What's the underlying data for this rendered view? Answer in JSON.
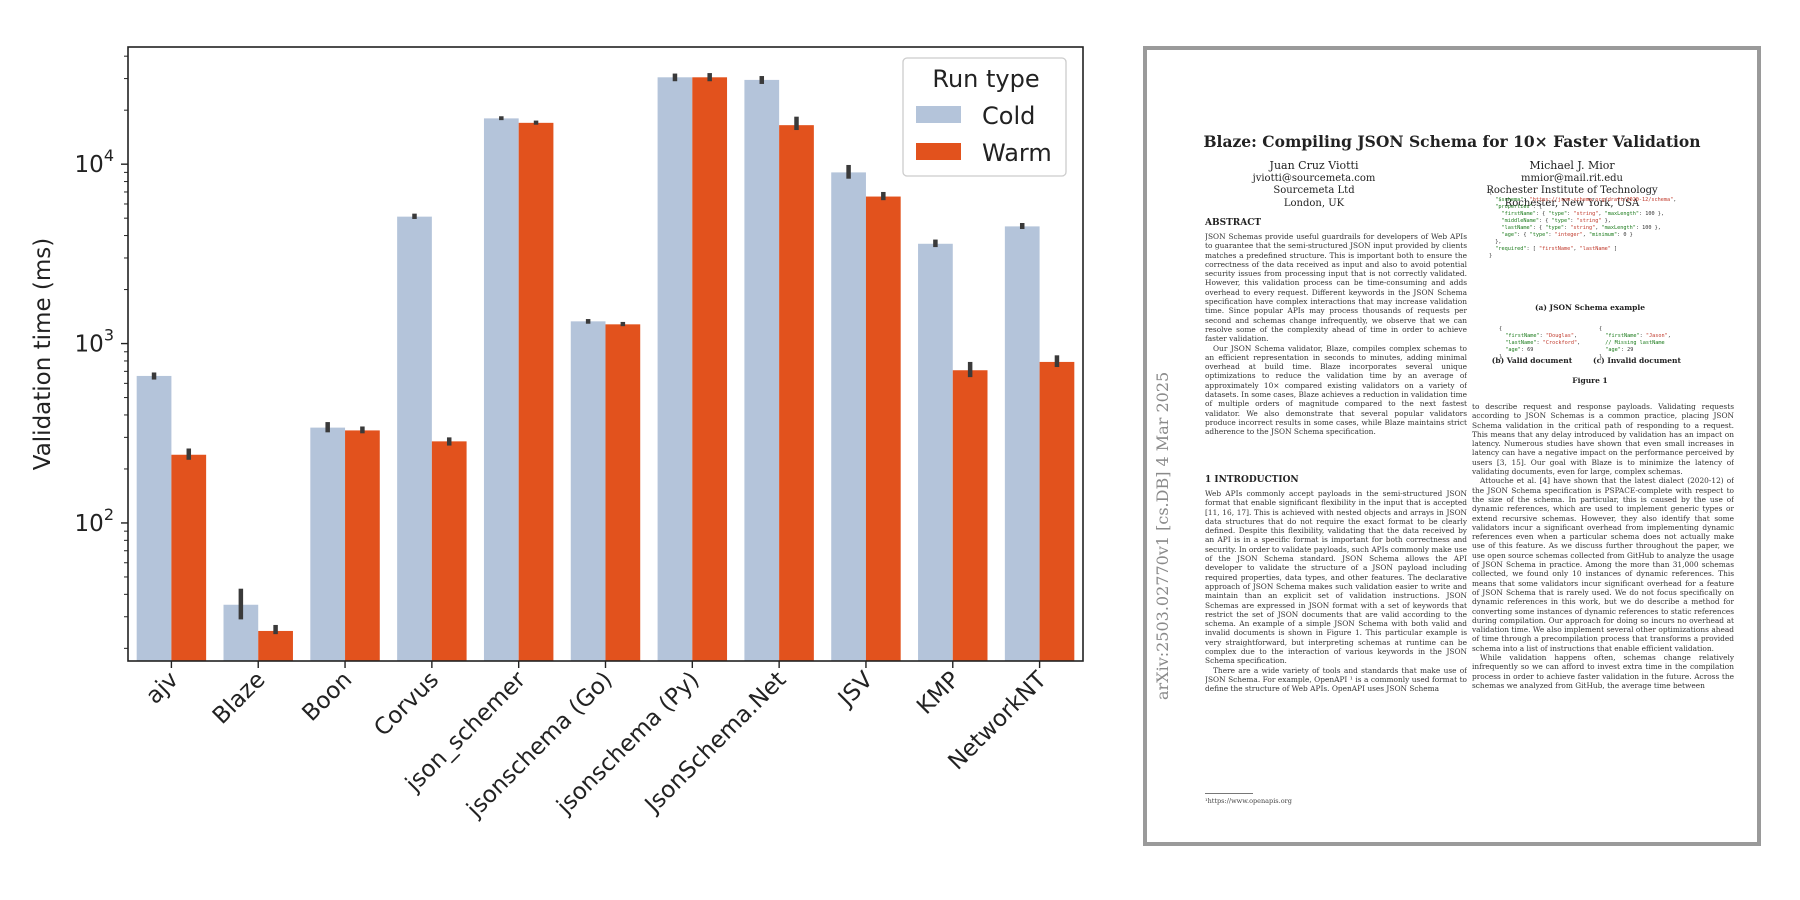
{
  "chart_data": {
    "type": "bar",
    "ylabel": "Validation time (ms)",
    "yscale": "log",
    "ylim": [
      17,
      45000
    ],
    "y_ticks": [
      {
        "value": 100,
        "base": "10",
        "exp": "2"
      },
      {
        "value": 1000,
        "base": "10",
        "exp": "3"
      },
      {
        "value": 10000,
        "base": "10",
        "exp": "4"
      }
    ],
    "categories": [
      "ajv",
      "Blaze",
      "Boon",
      "Corvus",
      "json_schemer",
      "jsonschema (Go)",
      "jsonschema (Py)",
      "JsonSchema.Net",
      "JSV",
      "KMP",
      "NetworkNT"
    ],
    "series": [
      {
        "name": "Cold",
        "color": "#b4c4da",
        "values": [
          660,
          35,
          340,
          5100,
          18000,
          1330,
          30500,
          29500,
          9000,
          3600,
          4500
        ],
        "err_low": [
          630,
          29,
          320,
          4950,
          17600,
          1290,
          29000,
          28000,
          8300,
          3450,
          4350
        ],
        "err_high": [
          690,
          43,
          365,
          5300,
          18500,
          1370,
          32000,
          31000,
          9900,
          3800,
          4700
        ]
      },
      {
        "name": "Warm",
        "color": "#e2521d",
        "values": [
          240,
          25,
          328,
          285,
          17000,
          1280,
          30500,
          16500,
          6600,
          710,
          790
        ],
        "err_low": [
          225,
          24,
          316,
          270,
          16600,
          1250,
          29000,
          15500,
          6300,
          650,
          740
        ],
        "err_high": [
          260,
          27,
          345,
          300,
          17500,
          1320,
          32200,
          18400,
          7000,
          790,
          860
        ]
      }
    ],
    "legend": {
      "title": "Run type",
      "position": "top-right"
    },
    "grid": false
  },
  "paper": {
    "arxiv_id": "arXiv:2503.02770v1  [cs.DB]  4 Mar 2025",
    "title": "Blaze: Compiling JSON Schema for 10× Faster Validation",
    "author1": {
      "name": "Juan Cruz Viotti",
      "email": "jviotti@sourcemeta.com",
      "org": "Sourcemeta Ltd",
      "place": "London, UK"
    },
    "author2": {
      "name": "Michael J. Mior",
      "email": "mmior@mail.rit.edu",
      "org": "Rochester Institute of Technology",
      "place": "Rochester, New York, USA"
    },
    "abstract_heading": "ABSTRACT",
    "abstract_p1": "JSON Schemas provide useful guardrails for developers of Web APIs to guarantee that the semi-structured JSON input provided by clients matches a predefined structure. This is important both to ensure the correctness of the data received as input and also to avoid potential security issues from processing input that is not correctly validated. However, this validation process can be time-consuming and adds overhead to every request. Different keywords in the JSON Schema specification have complex interactions that may increase validation time. Since popular APIs may process thousands of requests per second and schemas change infrequently, we observe that we can resolve some of the complexity ahead of time in order to achieve faster validation.",
    "abstract_p2": "Our JSON Schema validator, Blaze, compiles complex schemas to an efficient representation in seconds to minutes, adding minimal overhead at build time. Blaze incorporates several unique optimizations to reduce the validation time by an average of approximately 10× compared existing validators on a variety of datasets. In some cases, Blaze achieves a reduction in validation time of multiple orders of magnitude compared to the next fastest validator. We also demonstrate that several popular validators produce incorrect results in some cases, while Blaze maintains strict adherence to the JSON Schema specification.",
    "intro_heading": "1   INTRODUCTION",
    "intro_p1": "Web APIs commonly accept payloads in the semi-structured JSON format that enable significant flexibility in the input that is accepted [11, 16, 17]. This is achieved with nested objects and arrays in JSON data structures that do not require the exact format to be clearly defined. Despite this flexibility, validating that the data received by an API is in a specific format is important for both correctness and security. In order to validate payloads, such APIs commonly make use of the JSON Schema standard. JSON Schema allows the API developer to validate the structure of a JSON payload including required properties, data types, and other features. The declarative approach of JSON Schema makes such validation easier to write and maintain than an explicit set of validation instructions. JSON Schemas are expressed in JSON format with a set of keywords that restrict the set of JSON documents that are valid according to the schema. An example of a simple JSON Schema with both valid and invalid documents is shown in Figure 1. This particular example is very straightforward, but interpreting schemas at runtime can be complex due to the interaction of various keywords in the JSON Schema specification.",
    "intro_p2": "There are a wide variety of tools and standards that make use of JSON Schema. For example, OpenAPI ¹ is a commonly used format to define the structure of Web APIs. OpenAPI uses JSON Schema",
    "footnote": "¹https://www.openapis.org",
    "right_p1": "to describe request and response payloads. Validating requests according to JSON Schemas is a common practice, placing JSON Schema validation in the critical path of responding to a request. This means that any delay introduced by validation has an impact on latency. Numerous studies have shown that even small increases in latency can have a negative impact on the performance perceived by users [3, 15]. Our goal with Blaze is to minimize the latency of validating documents, even for large, complex schemas.",
    "right_p2": "Attouche et al. [4] have shown that the latest dialect (2020-12) of the JSON Schema specification is PSPACE-complete with respect to the size of the schema. In particular, this is caused by the use of dynamic references, which are used to implement generic types or extend recursive schemas. However, they also identify that some validators incur a significant overhead from implementing dynamic references even when a particular schema does not actually make use of this feature. As we discuss further throughout the paper, we use open source schemas collected from GitHub to analyze the usage of JSON Schema in practice. Among the more than 31,000 schemas collected, we found only 10 instances of dynamic references. This means that some validators incur significant overhead for a feature of JSON Schema that is rarely used. We do not focus specifically on dynamic references in this work, but we do describe a method for converting some instances of dynamic references to static references during compilation. Our approach for doing so incurs no overhead at validation time. We also implement several other optimizations ahead of time through a precompilation process that transforms a provided schema into a list of instructions that enable efficient validation.",
    "right_p3": "While validation happens often, schemas change relatively infrequently so we can afford to invest extra time in the compilation process in order to achieve faster validation in the future. Across the schemas we analyzed from GitHub, the average time between",
    "fig_cap_a": "(a) JSON Schema example",
    "fig_cap_b": "(b) Valid document",
    "fig_cap_c": "(c) Invalid document",
    "fig_caption": "Figure 1"
  }
}
